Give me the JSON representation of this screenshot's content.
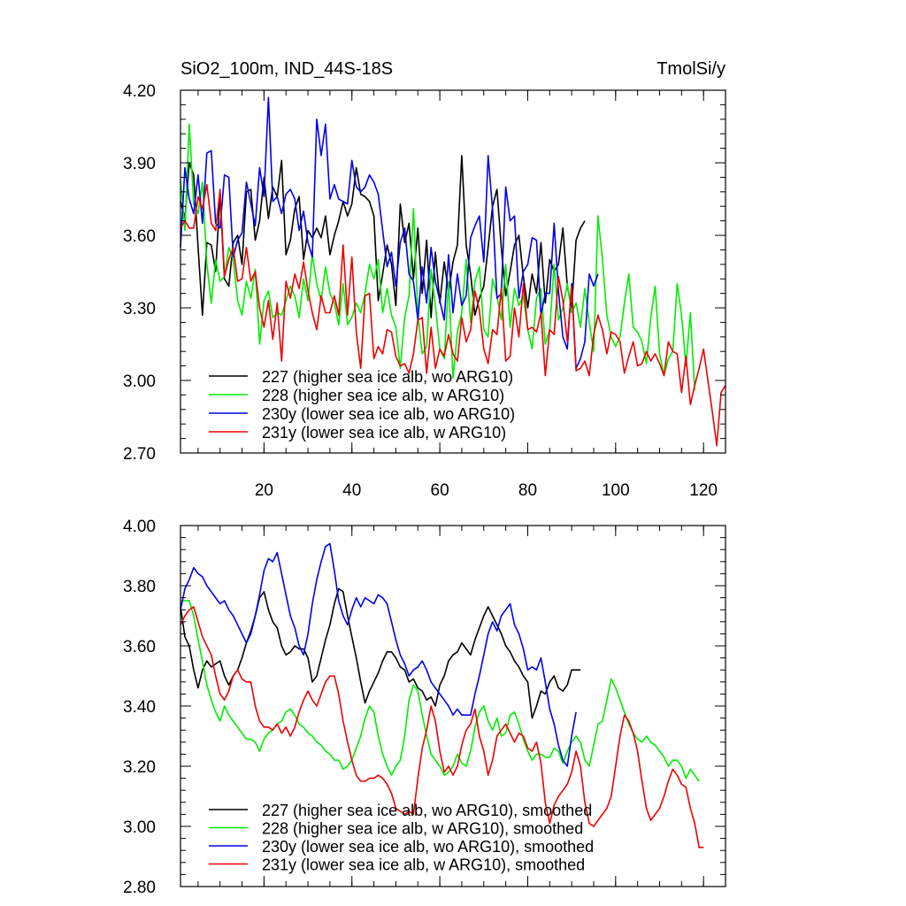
{
  "chart_data": [
    {
      "type": "line",
      "title": "SiO2_100m, IND_44S-18S",
      "units": "TmolSi/y",
      "xlabel": "",
      "ylabel": "",
      "xlim": [
        1,
        125
      ],
      "ylim": [
        2.7,
        4.2
      ],
      "yticks": [
        "4.20",
        "3.90",
        "3.60",
        "3.30",
        "3.00",
        "2.70"
      ],
      "xticks": [
        "20",
        "40",
        "60",
        "80",
        "100",
        "120"
      ],
      "legend_position": "bottom-left",
      "series": [
        {
          "name": "227 (higher sea ice alb, wo ARG10)",
          "color": "#000000",
          "values": [
            3.74,
            3.67,
            3.9,
            3.85,
            3.55,
            3.27,
            3.57,
            3.56,
            3.45,
            3.77,
            3.42,
            3.39,
            3.57,
            3.6,
            3.48,
            3.78,
            3.79,
            3.58,
            3.66,
            3.84,
            3.67,
            3.8,
            3.76,
            3.91,
            3.52,
            3.58,
            3.71,
            3.76,
            3.5,
            3.62,
            3.59,
            3.63,
            3.59,
            3.68,
            3.52,
            3.6,
            3.66,
            3.74,
            3.68,
            3.73,
            3.88,
            3.77,
            3.76,
            3.74,
            3.68,
            3.33,
            3.44,
            3.56,
            3.48,
            3.31,
            3.73,
            3.57,
            3.65,
            3.42,
            3.63,
            3.36,
            3.58,
            3.26,
            3.53,
            3.32,
            3.49,
            3.36,
            3.49,
            3.56,
            3.93,
            3.56,
            3.44,
            3.27,
            3.34,
            3.39,
            3.55,
            3.72,
            3.79,
            3.55,
            3.35,
            3.45,
            3.56,
            3.6,
            3.43,
            3.3,
            3.44,
            3.36,
            3.57,
            3.32,
            3.5,
            3.45,
            3.48,
            3.63,
            3.39,
            3.3,
            3.58,
            3.63,
            3.66
          ]
        },
        {
          "name": "228 (higher sea ice alb, w ARG10)",
          "color": "#00ee00",
          "values": [
            3.83,
            3.62,
            4.06,
            3.73,
            3.69,
            3.82,
            3.48,
            3.32,
            3.5,
            3.41,
            3.43,
            3.55,
            3.5,
            3.33,
            3.27,
            3.41,
            3.34,
            3.46,
            3.15,
            3.33,
            3.37,
            3.26,
            3.28,
            3.27,
            3.33,
            3.39,
            3.35,
            3.26,
            3.42,
            3.33,
            3.52,
            3.4,
            3.33,
            3.47,
            3.36,
            3.32,
            3.23,
            3.4,
            3.23,
            3.26,
            3.32,
            3.28,
            3.36,
            3.48,
            3.42,
            3.5,
            3.28,
            3.38,
            3.27,
            3.22,
            3.05,
            3.26,
            3.35,
            3.71,
            3.27,
            3.11,
            3.14,
            3.46,
            3.31,
            3.13,
            3.09,
            3.41,
            3.01,
            3.2,
            3.28,
            3.5,
            3.24,
            3.41,
            3.47,
            3.21,
            3.18,
            3.42,
            3.35,
            3.25,
            3.48,
            3.22,
            3.38,
            3.31,
            3.35,
            3.21,
            3.13,
            3.34,
            3.38,
            3.15,
            3.21,
            3.48,
            3.25,
            3.3,
            3.4,
            3.28,
            3.32,
            3.22,
            3.38,
            3.24,
            3.12,
            3.68,
            3.5,
            3.27,
            3.18,
            3.14,
            3.18,
            3.32,
            3.44,
            3.22,
            3.2,
            3.16,
            3.07,
            3.26,
            3.39,
            3.11,
            3.02,
            3.09,
            3.12,
            3.4,
            3.27,
            3.06,
            3.28,
            2.96
          ]
        },
        {
          "name": "230y (lower sea ice alb, wo ARG10)",
          "color": "#0000ee",
          "values": [
            3.55,
            3.88,
            3.75,
            3.69,
            3.85,
            3.65,
            3.94,
            3.95,
            3.65,
            3.63,
            3.85,
            3.84,
            3.51,
            3.58,
            3.61,
            3.82,
            3.73,
            3.64,
            3.88,
            3.76,
            4.17,
            3.74,
            3.76,
            3.69,
            3.77,
            3.79,
            3.75,
            3.62,
            3.7,
            3.57,
            3.51,
            4.08,
            3.93,
            4.06,
            3.75,
            3.81,
            3.75,
            3.74,
            3.73,
            3.91,
            3.8,
            3.78,
            3.8,
            3.85,
            3.82,
            3.77,
            3.62,
            3.47,
            3.53,
            3.39,
            3.57,
            3.63,
            3.44,
            3.41,
            3.25,
            3.47,
            3.32,
            3.55,
            3.41,
            3.33,
            3.25,
            3.52,
            3.28,
            3.44,
            3.31,
            3.35,
            3.59,
            3.64,
            3.68,
            3.49,
            3.93,
            3.71,
            3.34,
            3.36,
            3.8,
            3.66,
            3.68,
            3.34,
            3.45,
            3.48,
            3.59,
            3.58,
            3.27,
            3.36,
            3.36,
            3.65,
            3.37,
            3.18,
            3.13,
            3.4,
            3.05,
            3.09,
            3.16,
            3.44,
            3.39,
            3.44
          ]
        },
        {
          "name": "231y (lower sea ice alb, w ARG10)",
          "color": "#ee0000",
          "values": [
            3.63,
            3.66,
            3.63,
            3.63,
            3.76,
            3.71,
            3.81,
            3.65,
            3.62,
            3.79,
            3.43,
            3.5,
            3.55,
            3.41,
            3.42,
            3.55,
            3.41,
            3.45,
            3.3,
            3.22,
            3.33,
            3.17,
            3.32,
            3.08,
            3.41,
            3.34,
            3.44,
            3.38,
            3.49,
            3.37,
            3.28,
            3.21,
            3.35,
            3.28,
            3.28,
            3.35,
            3.27,
            3.56,
            3.27,
            3.51,
            3.2,
            3.05,
            3.35,
            3.36,
            3.09,
            3.14,
            3.11,
            3.21,
            3.2,
            3.1,
            3.06,
            3.07,
            3.03,
            3.11,
            3.25,
            3.26,
            3.03,
            3.22,
            3.05,
            3.13,
            3.1,
            3.19,
            3.11,
            3.08,
            3.26,
            3.16,
            3.21,
            3.37,
            3.29,
            3.13,
            3.07,
            3.21,
            3.19,
            3.38,
            3.08,
            3.1,
            3.3,
            3.18,
            3.4,
            3.21,
            3.22,
            3.2,
            3.28,
            3.02,
            3.21,
            3.19,
            3.43,
            3.33,
            3.16,
            3.39,
            3.04,
            3.05,
            3.08,
            3.02,
            3.19,
            3.27,
            3.21,
            3.11,
            3.2,
            3.19,
            3.16,
            3.03,
            3.1,
            3.16,
            3.06,
            3.07,
            3.12,
            3.08,
            3.11,
            3.07,
            3.02,
            3.16,
            3.12,
            3.11,
            2.95,
            3.1,
            2.9,
            2.98,
            3.05,
            3.13,
            3.0,
            2.87,
            2.73,
            2.95,
            2.98
          ]
        }
      ]
    },
    {
      "type": "line",
      "title": "",
      "xlabel": "",
      "ylabel": "",
      "xlim": [
        1,
        125
      ],
      "ylim": [
        2.8,
        4.0
      ],
      "yticks": [
        "4.00",
        "3.80",
        "3.60",
        "3.40",
        "3.20",
        "3.00",
        "2.80"
      ],
      "legend_position": "bottom-left",
      "series": [
        {
          "name": "227 (higher sea ice alb, wo ARG10), smoothed",
          "color": "#000000",
          "values": [
            3.73,
            3.63,
            3.6,
            3.52,
            3.46,
            3.52,
            3.55,
            3.53,
            3.54,
            3.55,
            3.5,
            3.47,
            3.5,
            3.52,
            3.56,
            3.61,
            3.65,
            3.7,
            3.76,
            3.78,
            3.72,
            3.68,
            3.66,
            3.6,
            3.57,
            3.58,
            3.6,
            3.59,
            3.59,
            3.56,
            3.48,
            3.5,
            3.56,
            3.62,
            3.67,
            3.74,
            3.79,
            3.78,
            3.7,
            3.63,
            3.56,
            3.48,
            3.41,
            3.45,
            3.48,
            3.51,
            3.55,
            3.58,
            3.58,
            3.56,
            3.53,
            3.52,
            3.48,
            3.49,
            3.46,
            3.45,
            3.42,
            3.43,
            3.4,
            3.47,
            3.5,
            3.55,
            3.57,
            3.58,
            3.61,
            3.59,
            3.57,
            3.62,
            3.66,
            3.7,
            3.73,
            3.7,
            3.67,
            3.64,
            3.6,
            3.58,
            3.55,
            3.53,
            3.5,
            3.48,
            3.36,
            3.4,
            3.45,
            3.44,
            3.48,
            3.5,
            3.46,
            3.45,
            3.47,
            3.52,
            3.52,
            3.52
          ]
        },
        {
          "name": "228 (higher sea ice alb, w ARG10), smoothed",
          "color": "#00ee00",
          "values": [
            3.75,
            3.75,
            3.75,
            3.7,
            3.62,
            3.55,
            3.47,
            3.42,
            3.38,
            3.35,
            3.4,
            3.37,
            3.35,
            3.33,
            3.31,
            3.29,
            3.29,
            3.28,
            3.25,
            3.29,
            3.31,
            3.32,
            3.34,
            3.35,
            3.38,
            3.39,
            3.37,
            3.34,
            3.33,
            3.31,
            3.3,
            3.28,
            3.27,
            3.25,
            3.24,
            3.22,
            3.22,
            3.19,
            3.2,
            3.22,
            3.26,
            3.3,
            3.36,
            3.4,
            3.38,
            3.3,
            3.24,
            3.2,
            3.17,
            3.2,
            3.22,
            3.3,
            3.42,
            3.47,
            3.45,
            3.37,
            3.3,
            3.24,
            3.22,
            3.2,
            3.17,
            3.18,
            3.2,
            3.24,
            3.21,
            3.2,
            3.25,
            3.33,
            3.38,
            3.4,
            3.35,
            3.32,
            3.36,
            3.3,
            3.31,
            3.37,
            3.38,
            3.34,
            3.29,
            3.25,
            3.22,
            3.24,
            3.24,
            3.23,
            3.23,
            3.26,
            3.25,
            3.21,
            3.25,
            3.28,
            3.3,
            3.28,
            3.22,
            3.2,
            3.27,
            3.34,
            3.35,
            3.42,
            3.49,
            3.46,
            3.42,
            3.38,
            3.34,
            3.31,
            3.29,
            3.28,
            3.3,
            3.28,
            3.27,
            3.25,
            3.23,
            3.2,
            3.22,
            3.22,
            3.2,
            3.16,
            3.19,
            3.17,
            3.15
          ]
        },
        {
          "name": "230y (lower sea ice alb, wo ARG10), smoothed",
          "color": "#0000ee",
          "values": [
            3.72,
            3.79,
            3.82,
            3.86,
            3.84,
            3.83,
            3.8,
            3.78,
            3.76,
            3.74,
            3.75,
            3.72,
            3.7,
            3.67,
            3.64,
            3.61,
            3.64,
            3.7,
            3.77,
            3.85,
            3.89,
            3.88,
            3.91,
            3.84,
            3.77,
            3.7,
            3.66,
            3.6,
            3.57,
            3.64,
            3.74,
            3.82,
            3.88,
            3.93,
            3.94,
            3.85,
            3.75,
            3.7,
            3.67,
            3.72,
            3.76,
            3.73,
            3.76,
            3.75,
            3.74,
            3.77,
            3.76,
            3.74,
            3.68,
            3.62,
            3.57,
            3.54,
            3.5,
            3.52,
            3.53,
            3.55,
            3.52,
            3.48,
            3.46,
            3.44,
            3.42,
            3.4,
            3.37,
            3.39,
            3.37,
            3.37,
            3.37,
            3.44,
            3.5,
            3.57,
            3.64,
            3.68,
            3.65,
            3.7,
            3.72,
            3.74,
            3.67,
            3.64,
            3.59,
            3.52,
            3.53,
            3.52,
            3.56,
            3.48,
            3.39,
            3.34,
            3.27,
            3.22,
            3.2,
            3.3,
            3.38
          ]
        },
        {
          "name": "231y (lower sea ice alb, w ARG10), smoothed",
          "color": "#ee0000",
          "values": [
            3.67,
            3.7,
            3.72,
            3.73,
            3.68,
            3.63,
            3.6,
            3.57,
            3.5,
            3.44,
            3.42,
            3.45,
            3.5,
            3.52,
            3.49,
            3.48,
            3.48,
            3.4,
            3.35,
            3.33,
            3.33,
            3.32,
            3.34,
            3.31,
            3.33,
            3.3,
            3.33,
            3.38,
            3.42,
            3.45,
            3.42,
            3.4,
            3.44,
            3.48,
            3.5,
            3.5,
            3.44,
            3.35,
            3.28,
            3.22,
            3.17,
            3.15,
            3.15,
            3.16,
            3.16,
            3.17,
            3.16,
            3.14,
            3.11,
            3.06,
            3.05,
            3.04,
            3.05,
            3.04,
            3.16,
            3.26,
            3.32,
            3.4,
            3.35,
            3.25,
            3.18,
            3.2,
            3.17,
            3.2,
            3.27,
            3.32,
            3.34,
            3.39,
            3.3,
            3.25,
            3.17,
            3.22,
            3.3,
            3.32,
            3.34,
            3.31,
            3.28,
            3.31,
            3.3,
            3.26,
            3.25,
            3.28,
            3.21,
            3.08,
            3.01,
            3.07,
            3.1,
            3.12,
            3.14,
            3.18,
            3.25,
            3.2,
            3.08,
            3.01,
            3.0,
            3.02,
            3.04,
            3.06,
            3.1,
            3.2,
            3.3,
            3.37,
            3.35,
            3.31,
            3.25,
            3.15,
            3.06,
            3.02,
            3.04,
            3.06,
            3.1,
            3.15,
            3.19,
            3.17,
            3.14,
            3.13,
            3.06,
            3.01,
            2.93,
            2.93
          ]
        }
      ]
    }
  ]
}
